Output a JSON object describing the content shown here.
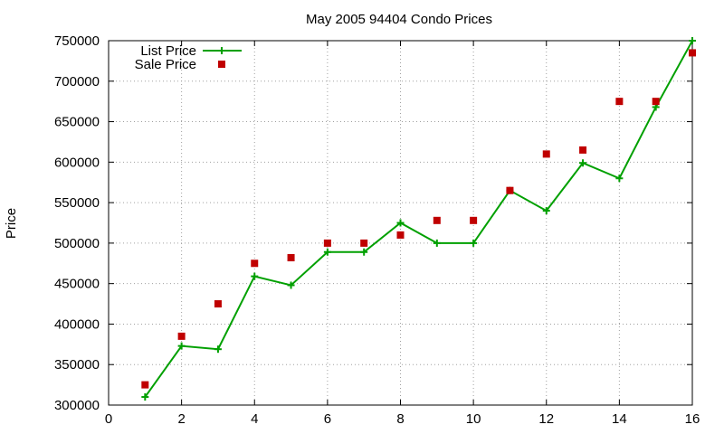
{
  "chart_data": {
    "type": "line",
    "title": "May 2005 94404 Condo Prices",
    "xlabel": "",
    "ylabel": "Price",
    "xlim": [
      0,
      16
    ],
    "ylim": [
      300000,
      750000
    ],
    "xticks": [
      0,
      2,
      4,
      6,
      8,
      10,
      12,
      14,
      16
    ],
    "yticks": [
      300000,
      350000,
      400000,
      450000,
      500000,
      550000,
      600000,
      650000,
      700000,
      750000
    ],
    "grid": true,
    "legend_position": "top-left",
    "series": [
      {
        "name": "List Price",
        "style": "line-with-plus-markers",
        "color": "#00a000",
        "x": [
          1,
          2,
          3,
          4,
          5,
          6,
          7,
          8,
          9,
          10,
          11,
          12,
          13,
          14,
          15,
          16
        ],
        "y": [
          310000,
          373000,
          369000,
          459000,
          448000,
          489000,
          489000,
          525000,
          500000,
          500000,
          565000,
          540000,
          599000,
          580000,
          668000,
          750000
        ]
      },
      {
        "name": "Sale Price",
        "style": "square-markers",
        "color": "#c00000",
        "x": [
          1,
          2,
          3,
          4,
          5,
          6,
          7,
          8,
          9,
          10,
          11,
          12,
          13,
          14,
          15,
          16
        ],
        "y": [
          325000,
          385000,
          425000,
          475000,
          482000,
          500000,
          500000,
          510000,
          528000,
          528000,
          565000,
          610000,
          615000,
          675000,
          675000,
          735000
        ]
      }
    ]
  }
}
